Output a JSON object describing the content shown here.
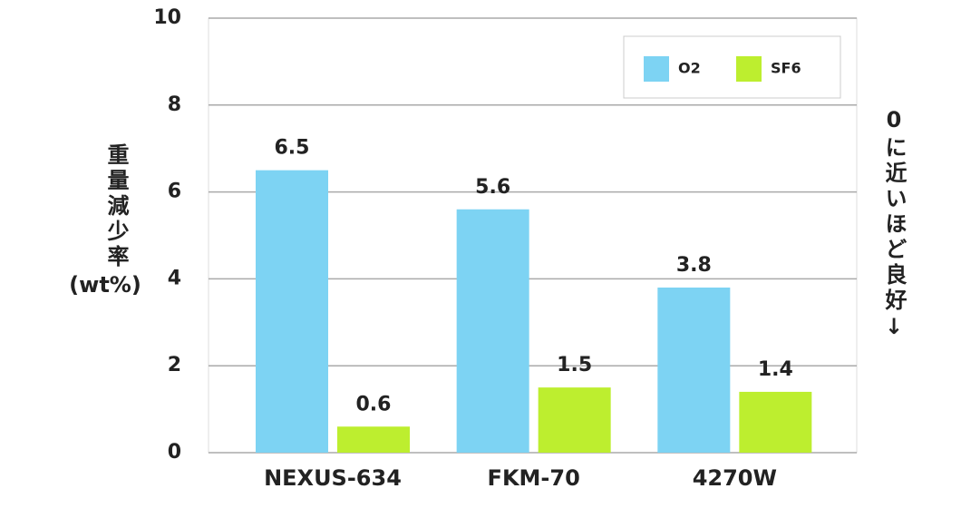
{
  "chart_data": {
    "type": "bar",
    "ylabel": [
      "重量減少率",
      "(wt%)"
    ],
    "annotation": "0に近いほど良好↓",
    "categories": [
      "NEXUS-634",
      "FKM-70",
      "4270W"
    ],
    "series": [
      {
        "name": "O2",
        "color": "#7dd3f3",
        "values": [
          6.5,
          5.6,
          3.8
        ]
      },
      {
        "name": "SF6",
        "color": "#bdee2f",
        "values": [
          0.6,
          1.5,
          1.4
        ]
      }
    ],
    "ylim": [
      0,
      10
    ],
    "yticks": [
      0,
      2,
      4,
      6,
      8,
      10
    ],
    "grid": true,
    "legend": "top-right"
  }
}
